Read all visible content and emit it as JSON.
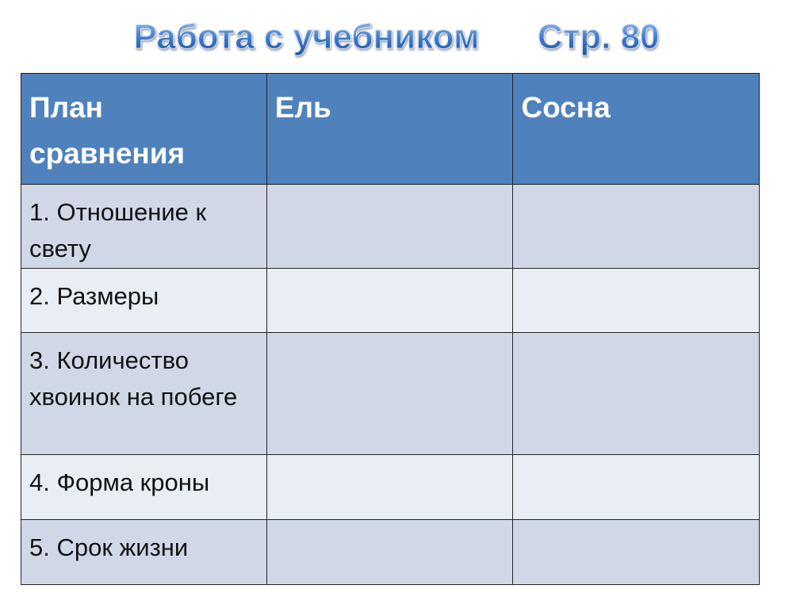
{
  "title": "Работа с учебником      Стр. 80",
  "table": {
    "headers": [
      "План сравнения",
      "Ель",
      "Сосна"
    ],
    "rows": [
      [
        "1. Отношение к свету",
        "",
        ""
      ],
      [
        "2. Размеры",
        "",
        ""
      ],
      [
        "3. Количество хвоинок на побеге",
        "",
        ""
      ],
      [
        "4. Форма кроны",
        "",
        ""
      ],
      [
        "5. Срок жизни",
        "",
        ""
      ]
    ]
  },
  "colors": {
    "header": "#4f81bd",
    "row_dark": "#d0d8e8",
    "row_light": "#e9edf4"
  }
}
